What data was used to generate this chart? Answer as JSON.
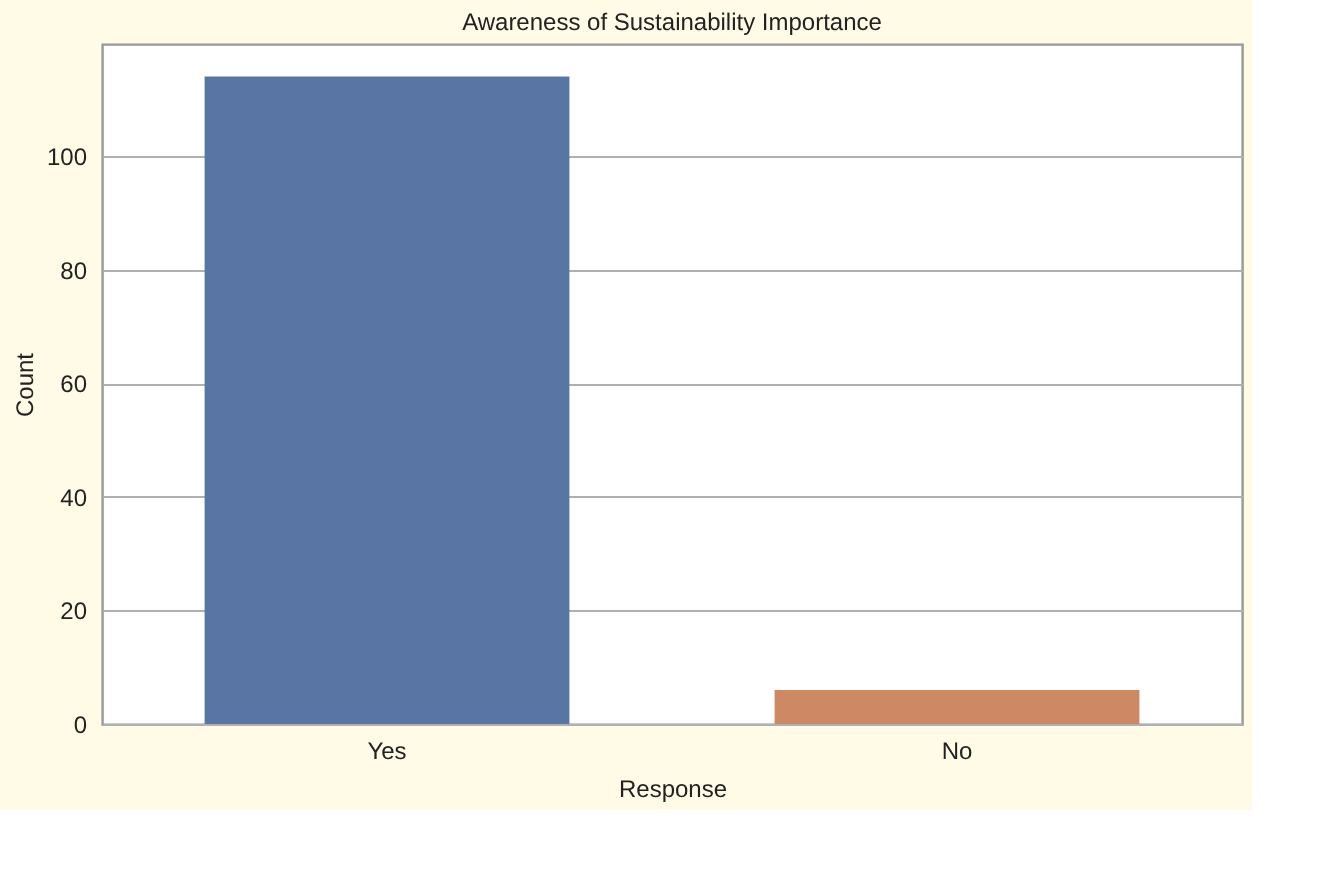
{
  "chart_data": {
    "type": "bar",
    "title": "Awareness of Sustainability Importance",
    "xlabel": "Response",
    "ylabel": "Count",
    "categories": [
      "Yes",
      "No"
    ],
    "values": [
      114,
      6
    ],
    "colors": [
      "#5975a4",
      "#cc8963"
    ],
    "ylim": [
      0,
      119.7
    ],
    "yticks": [
      0,
      20,
      40,
      60,
      80,
      100
    ],
    "grid": "y"
  }
}
